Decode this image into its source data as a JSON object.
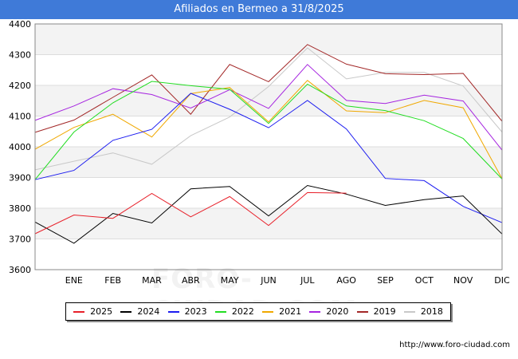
{
  "header": {
    "title": "Afiliados en Bermeo a 31/8/2025"
  },
  "footer": {
    "url": "http://www.foro-ciudad.com"
  },
  "watermark": "FORO-CIUDAD.COM",
  "chart_data": {
    "type": "line",
    "title": "Afiliados en Bermeo a 31/8/2025",
    "xlabel": "",
    "ylabel": "",
    "categories": [
      "",
      "ENE",
      "FEB",
      "MAR",
      "ABR",
      "MAY",
      "JUN",
      "JUL",
      "AGO",
      "SEP",
      "OCT",
      "NOV",
      "DIC"
    ],
    "ylim": [
      3600,
      4400
    ],
    "yticks": [
      3600,
      3700,
      3800,
      3900,
      4000,
      4100,
      4200,
      4300,
      4400
    ],
    "grid": "horizontal alternating bands",
    "legend_position": "bottom",
    "series": [
      {
        "name": "2025",
        "color": "#e8202a",
        "values": [
          3717,
          3778,
          3767,
          3848,
          3772,
          3838,
          3744,
          3851,
          3849,
          null,
          null,
          null,
          null
        ]
      },
      {
        "name": "2024",
        "color": "#000000",
        "values": [
          3755,
          3686,
          3783,
          3752,
          3863,
          3871,
          3775,
          3874,
          3846,
          3809,
          3828,
          3840,
          3716
        ]
      },
      {
        "name": "2023",
        "color": "#1c1cf0",
        "values": [
          3893,
          3923,
          4021,
          4057,
          4174,
          4122,
          4062,
          4151,
          4058,
          3897,
          3890,
          3806,
          3753
        ]
      },
      {
        "name": "2022",
        "color": "#22dd22",
        "values": [
          3893,
          4048,
          4143,
          4213,
          4199,
          4187,
          4076,
          4204,
          4133,
          4118,
          4085,
          4027,
          3895
        ]
      },
      {
        "name": "2021",
        "color": "#f0a800",
        "values": [
          3992,
          4063,
          4106,
          4032,
          4173,
          4193,
          4081,
          4216,
          4117,
          4111,
          4151,
          4127,
          3896
        ]
      },
      {
        "name": "2020",
        "color": "#a625e0",
        "values": [
          4086,
          4133,
          4189,
          4170,
          4126,
          4186,
          4125,
          4268,
          4151,
          4141,
          4168,
          4149,
          3989
        ]
      },
      {
        "name": "2019",
        "color": "#a32828",
        "values": [
          4047,
          4087,
          4161,
          4234,
          4106,
          4268,
          4212,
          4333,
          4269,
          4238,
          4235,
          4239,
          4083
        ]
      },
      {
        "name": "2018",
        "color": "#c8c8c8",
        "values": [
          3925,
          3953,
          3980,
          3943,
          4036,
          4097,
          4196,
          4322,
          4221,
          4242,
          4242,
          4198,
          4048
        ]
      }
    ]
  }
}
